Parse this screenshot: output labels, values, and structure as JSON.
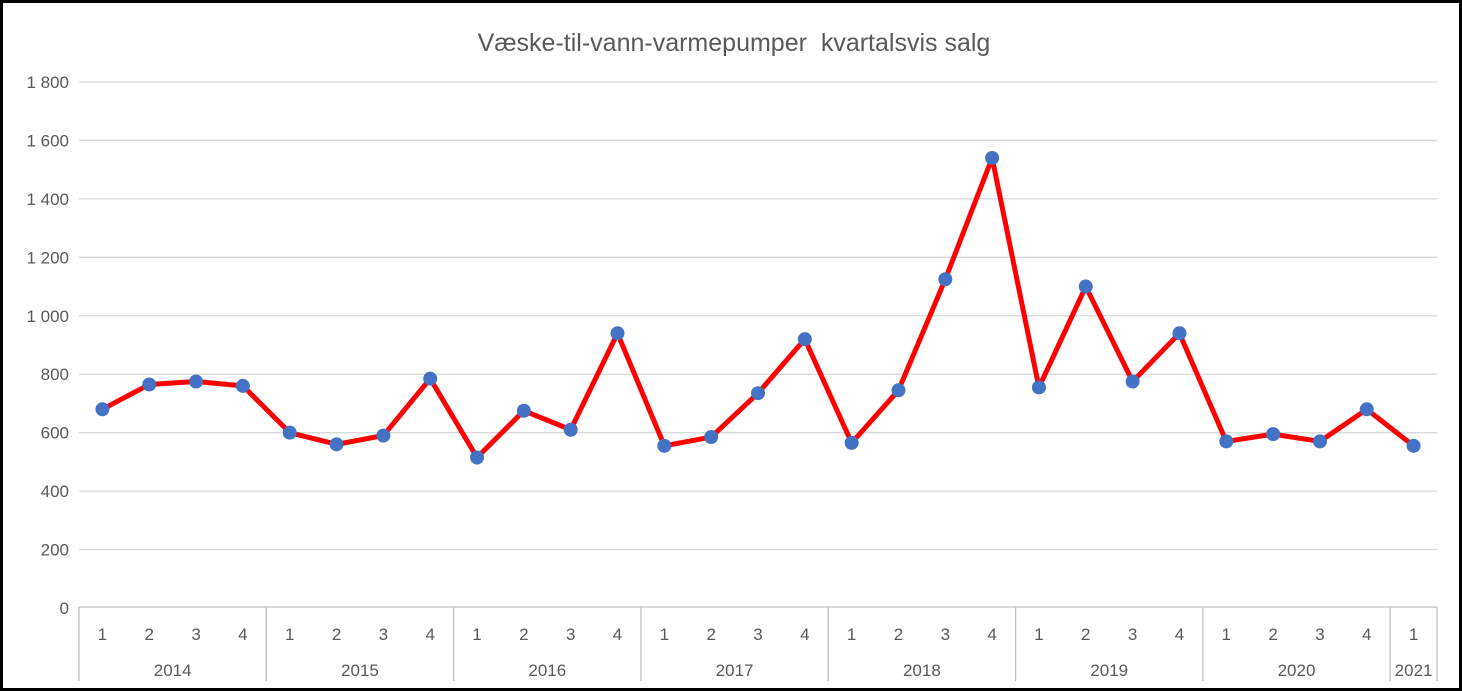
{
  "chart_data": {
    "type": "line",
    "title": "Væske-til-vann-varmepumper  kvartalsvis salg",
    "xlabel": "",
    "ylabel": "",
    "ylim": [
      0,
      1800
    ],
    "y_ticks": [
      0,
      200,
      400,
      600,
      800,
      1000,
      1200,
      1400,
      1600,
      1800
    ],
    "y_tick_labels": [
      "0",
      "200",
      "400",
      "600",
      "800",
      "1 000",
      "1 200",
      "1 400",
      "1 600",
      "1 800"
    ],
    "grid": true,
    "legend": "none",
    "x_groups": [
      {
        "year": "2014",
        "quarters": [
          "1",
          "2",
          "3",
          "4"
        ],
        "values": [
          680,
          765,
          775,
          760
        ]
      },
      {
        "year": "2015",
        "quarters": [
          "1",
          "2",
          "3",
          "4"
        ],
        "values": [
          600,
          560,
          590,
          785
        ]
      },
      {
        "year": "2016",
        "quarters": [
          "1",
          "2",
          "3",
          "4"
        ],
        "values": [
          515,
          675,
          610,
          940
        ]
      },
      {
        "year": "2017",
        "quarters": [
          "1",
          "2",
          "3",
          "4"
        ],
        "values": [
          555,
          585,
          735,
          920
        ]
      },
      {
        "year": "2018",
        "quarters": [
          "1",
          "2",
          "3",
          "4"
        ],
        "values": [
          565,
          745,
          1125,
          1540
        ]
      },
      {
        "year": "2019",
        "quarters": [
          "1",
          "2",
          "3",
          "4"
        ],
        "values": [
          755,
          1100,
          775,
          940
        ]
      },
      {
        "year": "2020",
        "quarters": [
          "1",
          "2",
          "3",
          "4"
        ],
        "values": [
          570,
          595,
          570,
          680
        ]
      },
      {
        "year": "2021",
        "quarters": [
          "1"
        ],
        "values": [
          555
        ]
      }
    ]
  },
  "colors": {
    "line": "#FF0000",
    "marker": "#4472C4",
    "gridline": "#D9D9D9",
    "axis_line": "#BFBFBF",
    "text": "#595959",
    "frame_border": "#000000",
    "background": "#FFFFFF"
  }
}
